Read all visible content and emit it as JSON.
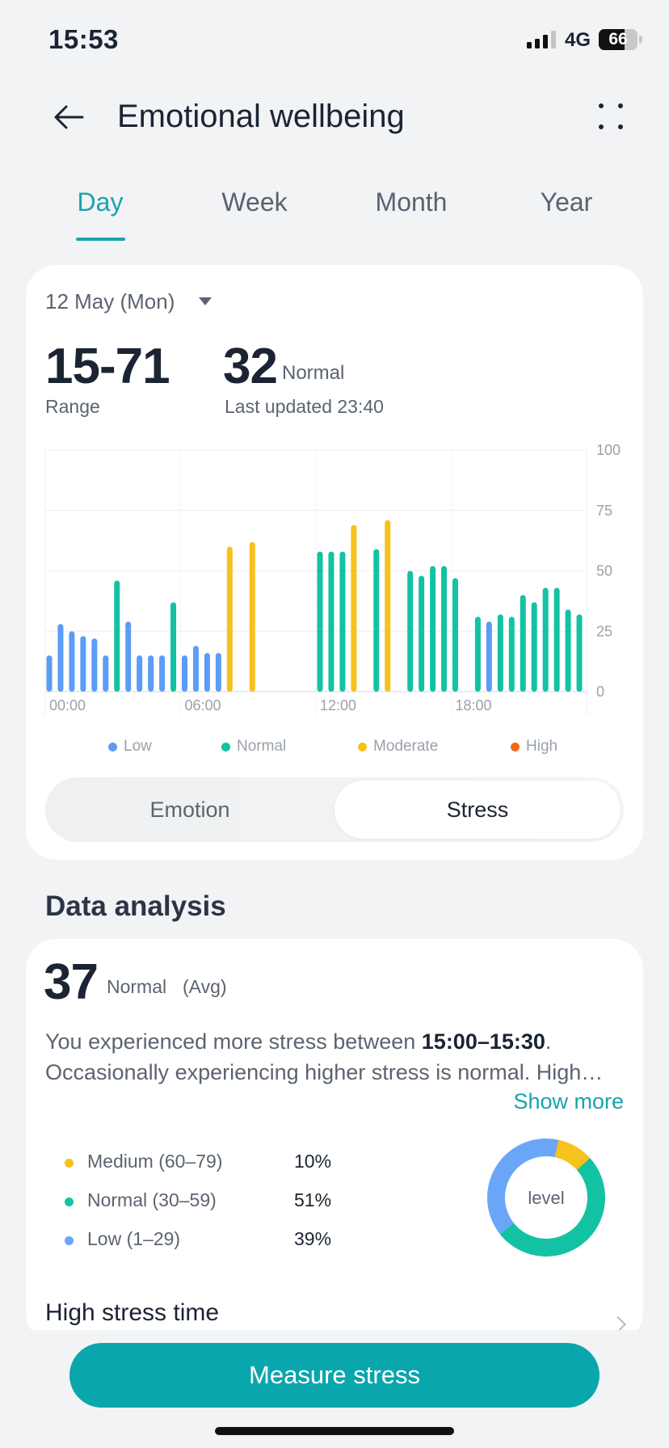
{
  "status_bar": {
    "time": "15:53",
    "network": "4G",
    "battery": "66"
  },
  "header": {
    "title": "Emotional wellbeing",
    "back_icon": "back-arrow-icon",
    "more_icon": "more-dots-icon"
  },
  "tabs": [
    {
      "label": "Day",
      "active": true
    },
    {
      "label": "Week",
      "active": false
    },
    {
      "label": "Month",
      "active": false
    },
    {
      "label": "Year",
      "active": false
    }
  ],
  "summary": {
    "date": "12 May (Mon)",
    "range_value": "15-71",
    "range_label": "Range",
    "current_value": "32",
    "current_status": "Normal",
    "last_updated": "Last updated 23:40"
  },
  "chart_data": {
    "type": "bar",
    "x_ticks": [
      "00:00",
      "06:00",
      "12:00",
      "18:00"
    ],
    "y_ticks": [
      "100",
      "75",
      "50",
      "25",
      "0"
    ],
    "ylim": [
      0,
      100
    ],
    "x_range_hours": [
      0,
      24
    ],
    "levels": {
      "Low": "#5b9cf6",
      "Normal": "#13c2a3",
      "Moderate": "#f7c21b",
      "High": "#f06a18"
    },
    "bars": [
      {
        "hour": 0.0,
        "value": 15,
        "level": "Low"
      },
      {
        "hour": 0.5,
        "value": 28,
        "level": "Low"
      },
      {
        "hour": 1.0,
        "value": 25,
        "level": "Low"
      },
      {
        "hour": 1.5,
        "value": 23,
        "level": "Low"
      },
      {
        "hour": 2.0,
        "value": 22,
        "level": "Low"
      },
      {
        "hour": 2.5,
        "value": 15,
        "level": "Low"
      },
      {
        "hour": 3.0,
        "value": 46,
        "level": "Normal"
      },
      {
        "hour": 3.5,
        "value": 29,
        "level": "Low"
      },
      {
        "hour": 4.0,
        "value": 15,
        "level": "Low"
      },
      {
        "hour": 4.5,
        "value": 15,
        "level": "Low"
      },
      {
        "hour": 5.0,
        "value": 15,
        "level": "Low"
      },
      {
        "hour": 5.5,
        "value": 37,
        "level": "Normal"
      },
      {
        "hour": 6.0,
        "value": 15,
        "level": "Low"
      },
      {
        "hour": 6.5,
        "value": 19,
        "level": "Low"
      },
      {
        "hour": 7.0,
        "value": 16,
        "level": "Low"
      },
      {
        "hour": 7.5,
        "value": 16,
        "level": "Low"
      },
      {
        "hour": 8.0,
        "value": 60,
        "level": "Moderate"
      },
      {
        "hour": 9.0,
        "value": 62,
        "level": "Moderate"
      },
      {
        "hour": 12.0,
        "value": 58,
        "level": "Normal"
      },
      {
        "hour": 12.5,
        "value": 58,
        "level": "Normal"
      },
      {
        "hour": 13.0,
        "value": 58,
        "level": "Normal"
      },
      {
        "hour": 13.5,
        "value": 69,
        "level": "Moderate"
      },
      {
        "hour": 14.5,
        "value": 59,
        "level": "Normal"
      },
      {
        "hour": 15.0,
        "value": 71,
        "level": "Moderate"
      },
      {
        "hour": 16.0,
        "value": 50,
        "level": "Normal"
      },
      {
        "hour": 16.5,
        "value": 48,
        "level": "Normal"
      },
      {
        "hour": 17.0,
        "value": 52,
        "level": "Normal"
      },
      {
        "hour": 17.5,
        "value": 52,
        "level": "Normal"
      },
      {
        "hour": 18.0,
        "value": 47,
        "level": "Normal"
      },
      {
        "hour": 19.0,
        "value": 31,
        "level": "Normal"
      },
      {
        "hour": 19.5,
        "value": 29,
        "level": "Low"
      },
      {
        "hour": 20.0,
        "value": 32,
        "level": "Normal"
      },
      {
        "hour": 20.5,
        "value": 31,
        "level": "Normal"
      },
      {
        "hour": 21.0,
        "value": 40,
        "level": "Normal"
      },
      {
        "hour": 21.5,
        "value": 37,
        "level": "Normal"
      },
      {
        "hour": 22.0,
        "value": 43,
        "level": "Normal"
      },
      {
        "hour": 22.5,
        "value": 43,
        "level": "Normal"
      },
      {
        "hour": 23.0,
        "value": 34,
        "level": "Normal"
      },
      {
        "hour": 23.5,
        "value": 32,
        "level": "Normal"
      }
    ]
  },
  "legend": [
    {
      "label": "Low",
      "color": "#5b9cf6"
    },
    {
      "label": "Normal",
      "color": "#13c2a3"
    },
    {
      "label": "Moderate",
      "color": "#f7c21b"
    },
    {
      "label": "High",
      "color": "#f06a18"
    }
  ],
  "toggle": {
    "left": "Emotion",
    "right": "Stress",
    "selected": "Stress"
  },
  "analysis": {
    "heading": "Data analysis",
    "avg_value": "37",
    "avg_status": "Normal",
    "avg_tag": "(Avg)",
    "desc_prefix": "You experienced more stress between ",
    "desc_bold": "15:00–15:30",
    "desc_suffix": ".",
    "desc_line2": "Occasionally experiencing higher stress is normal. High…",
    "show_more": "Show more",
    "stats": [
      {
        "label": "Medium (60–79)",
        "pct": "10%",
        "color": "#f7c21b",
        "fraction": 0.1
      },
      {
        "label": "Normal (30–59)",
        "pct": "51%",
        "color": "#13c2a3",
        "fraction": 0.51
      },
      {
        "label": "Low (1–29)",
        "pct": "39%",
        "color": "#6aa6f8",
        "fraction": 0.39
      }
    ],
    "donut_label": "level",
    "high_stress_title": "High stress time"
  },
  "cta": {
    "label": "Measure stress"
  }
}
